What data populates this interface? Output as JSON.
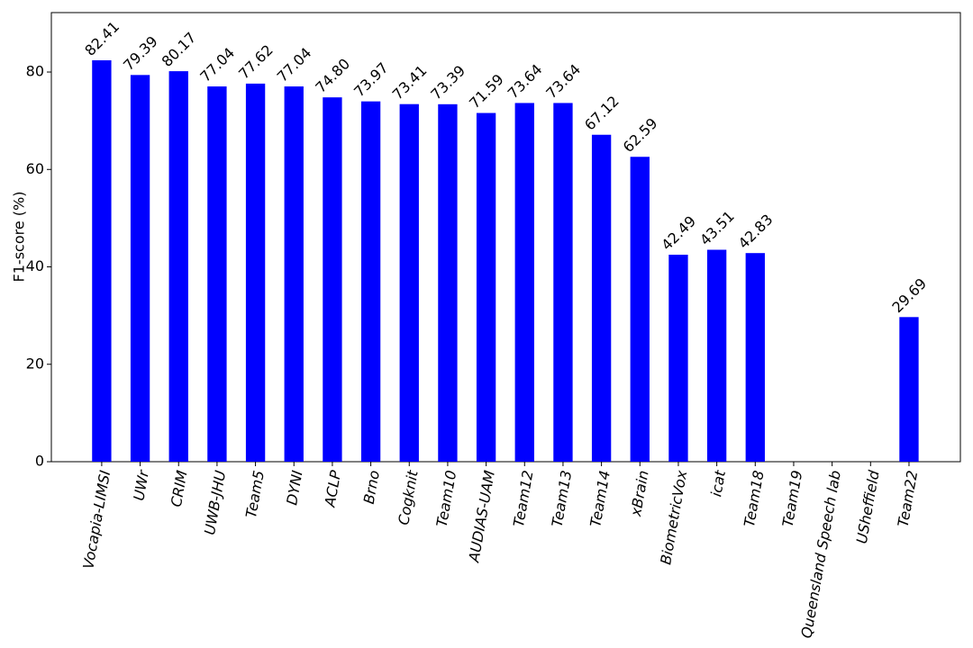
{
  "chart_data": {
    "type": "bar",
    "y_label": "F1-score (%)",
    "categories": [
      "Vocapia-LIMSI",
      "UWr",
      "CRIM",
      "UWB-JHU",
      "Team5",
      "DYNI",
      "ACLP",
      "Brno",
      "Cogknit",
      "Team10",
      "AUDIAS-UAM",
      "Team12",
      "Team13",
      "Team14",
      "xBrain",
      "BiometricVox",
      "icat",
      "Team18",
      "Team19",
      "Queensland Speech lab",
      "USheffield",
      "Team22"
    ],
    "values": [
      82.41,
      79.39,
      80.17,
      77.04,
      77.62,
      77.04,
      74.8,
      73.97,
      73.41,
      73.39,
      71.59,
      73.64,
      73.64,
      67.12,
      62.59,
      42.49,
      43.51,
      42.83,
      null,
      null,
      null,
      29.69
    ],
    "value_labels": [
      "82.41",
      "79.39",
      "80.17",
      "77.04",
      "77.62",
      "77.04",
      "74.80",
      "73.97",
      "73.41",
      "73.39",
      "71.59",
      "73.64",
      "73.64",
      "67.12",
      "62.59",
      "42.49",
      "43.51",
      "42.83",
      null,
      null,
      null,
      "29.69"
    ],
    "color": "#0000ff",
    "ylim": [
      0,
      92.2
    ],
    "yticks": [
      0,
      20,
      40,
      60,
      80
    ],
    "grid": false
  }
}
